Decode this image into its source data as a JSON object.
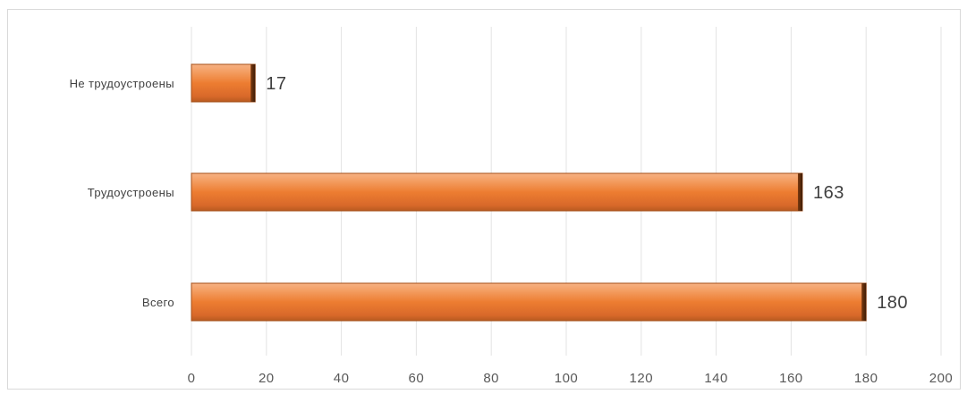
{
  "chart_data": {
    "type": "bar",
    "orientation": "horizontal",
    "categories": [
      "Не трудоустроены",
      "Трудоустроены",
      "Всего"
    ],
    "values": [
      17,
      163,
      180
    ],
    "data_labels": [
      "17",
      "163",
      "180"
    ],
    "xlim": [
      0,
      200
    ],
    "x_ticks": [
      0,
      20,
      40,
      60,
      80,
      100,
      120,
      140,
      160,
      180,
      200
    ],
    "x_tick_labels": [
      "0",
      "20",
      "40",
      "60",
      "80",
      "100",
      "120",
      "140",
      "160",
      "180",
      "200"
    ],
    "grid": "vertical",
    "legend": "none",
    "bar_color": "#ED7D31"
  }
}
